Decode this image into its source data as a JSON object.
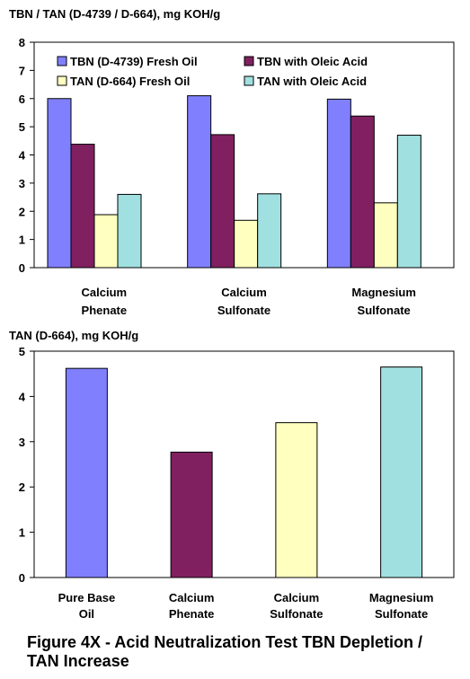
{
  "chart_data": [
    {
      "type": "bar",
      "ylabel": "TBN / TAN (D-4739 / D-664), mg KOH/g",
      "ylim": [
        0,
        8
      ],
      "yticks": [
        0,
        1,
        2,
        3,
        4,
        5,
        6,
        7,
        8
      ],
      "grid": false,
      "legend": "top",
      "categories": [
        "Calcium\nPhenate",
        "Calcium\nSulfonate",
        "Magnesium\nSulfonate"
      ],
      "series": [
        {
          "name": "TBN (D-4739) Fresh Oil",
          "color": "#8080ff",
          "values": [
            6.0,
            6.1,
            5.98
          ]
        },
        {
          "name": "TBN with Oleic Acid",
          "color": "#802060",
          "values": [
            4.38,
            4.72,
            5.38
          ]
        },
        {
          "name": "TAN (D-664) Fresh Oil",
          "color": "#ffffc0",
          "values": [
            1.88,
            1.68,
            2.3
          ]
        },
        {
          "name": "TAN with Oleic Acid",
          "color": "#a0e0e0",
          "values": [
            2.6,
            2.62,
            4.7
          ]
        }
      ]
    },
    {
      "type": "bar",
      "ylabel": "TAN (D-664), mg KOH/g",
      "ylim": [
        0,
        5
      ],
      "yticks": [
        0,
        1,
        2,
        3,
        4,
        5
      ],
      "grid": false,
      "categories": [
        "Pure Base\nOil",
        "Calcium\nPhenate",
        "Calcium\nSulfonate",
        "Magnesium\nSulfonate"
      ],
      "colors": [
        "#8080ff",
        "#802060",
        "#ffffc0",
        "#a0e0e0"
      ],
      "values": [
        4.62,
        2.77,
        3.42,
        4.65
      ]
    }
  ],
  "caption": "Figure 4X - Acid Neutralization Test TBN Depletion /\n   TAN Increase"
}
